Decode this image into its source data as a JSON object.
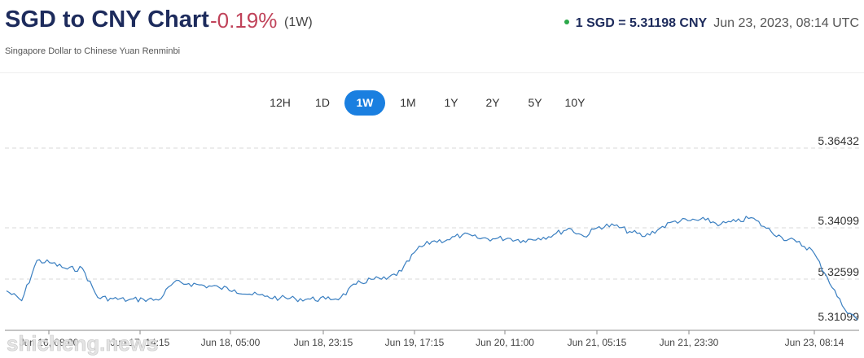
{
  "header": {
    "title": "SGD to CNY Chart",
    "change": "-0.19%",
    "period": "(1W)",
    "subtitle": "Singapore Dollar to Chinese Yuan Renminbi",
    "rate": "1 SGD = 5.31198 CNY",
    "timestamp": "Jun 23, 2023, 08:14 UTC",
    "status_color": "#2ca84a"
  },
  "tabs": [
    {
      "label": "12H",
      "active": false
    },
    {
      "label": "1D",
      "active": false
    },
    {
      "label": "1W",
      "active": true
    },
    {
      "label": "1M",
      "active": false
    },
    {
      "label": "1Y",
      "active": false
    },
    {
      "label": "2Y",
      "active": false
    },
    {
      "label": "5Y",
      "active": false
    },
    {
      "label": "10Y",
      "active": false
    }
  ],
  "watermark": "shicheng.news",
  "chart_data": {
    "type": "line",
    "y_ticks": [
      "5.36432",
      "5.34099",
      "5.32599",
      "5.31099"
    ],
    "ylim": [
      5.30849,
      5.36432
    ],
    "x_ticks": [
      "Jun 16, 08:00",
      "Jun 17, 14:15",
      "Jun 18, 05:00",
      "Jun 18, 23:15",
      "Jun 19, 17:15",
      "Jun 20, 11:00",
      "Jun 21, 05:15",
      "Jun 21, 23:30",
      "Jun 23, 08:14"
    ],
    "line_color": "#3a7fc1",
    "grid": "horizontal dashed",
    "series": [
      {
        "values": [
          5.321,
          5.318,
          5.3302,
          5.3294,
          5.3276,
          5.3278,
          5.319,
          5.3186,
          5.3182,
          5.3185,
          5.3182,
          5.3235,
          5.3232,
          5.3226,
          5.322,
          5.3213,
          5.32,
          5.3193,
          5.3188,
          5.3186,
          5.3185,
          5.3185,
          5.319,
          5.323,
          5.3245,
          5.3245,
          5.327,
          5.3335,
          5.336,
          5.3365,
          5.338,
          5.337,
          5.3368,
          5.337,
          5.3363,
          5.337,
          5.338,
          5.34,
          5.3375,
          5.3405,
          5.3408,
          5.339,
          5.3375,
          5.34,
          5.3422,
          5.3423,
          5.3425,
          5.3412,
          5.342,
          5.3432,
          5.34,
          5.3373,
          5.3358,
          5.3334,
          5.3252,
          5.3165,
          5.3121
        ]
      }
    ]
  }
}
